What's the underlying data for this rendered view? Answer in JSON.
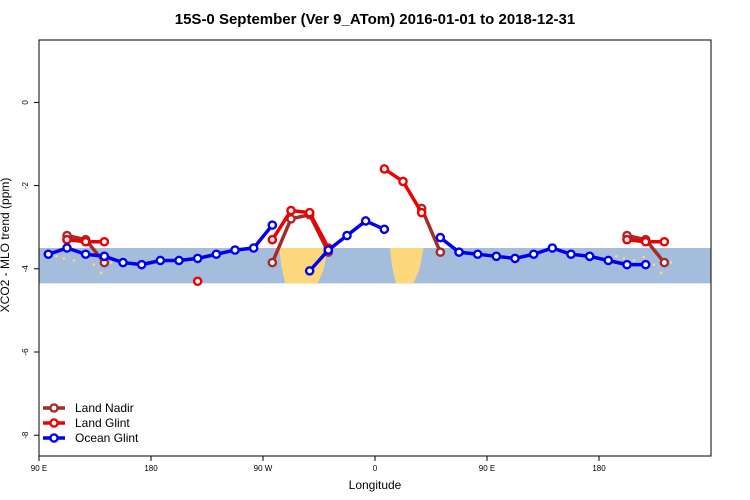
{
  "chart_data": {
    "type": "line",
    "title": "15S-0 September (Ver 9_ATom)   2016-01-01 to 2018-12-31",
    "xlabel": "Longitude",
    "ylabel": "XCO2 - MLO trend (ppm)",
    "xlim": [
      90,
      450
    ],
    "ylim": [
      -8.5,
      1.5
    ],
    "x_ticks": [
      {
        "value": 90,
        "label": "90 E"
      },
      {
        "value": 180,
        "label": "180"
      },
      {
        "value": 270,
        "label": "90 W"
      },
      {
        "value": 360,
        "label": "0"
      },
      {
        "value": 450,
        "label": "90 E"
      },
      {
        "value": 540,
        "label": "180"
      }
    ],
    "y_ticks": [
      {
        "value": 0,
        "label": "0"
      },
      {
        "value": -2,
        "label": "-2"
      },
      {
        "value": -4,
        "label": "-4"
      },
      {
        "value": -6,
        "label": "-6"
      },
      {
        "value": -8,
        "label": "-8"
      }
    ],
    "legend_position": "bottom-left",
    "grid": false,
    "series": [
      {
        "name": "Land Nadir",
        "color": "#a52a2a",
        "segments": [
          [
            {
              "x": 112.5,
              "y": -3.2
            },
            {
              "x": 127.5,
              "y": -3.3
            },
            {
              "x": 142.5,
              "y": -3.85
            }
          ],
          [
            {
              "x": 277.5,
              "y": -3.85
            },
            {
              "x": 292.5,
              "y": -2.8
            },
            {
              "x": 307.5,
              "y": -2.7
            },
            {
              "x": 322.5,
              "y": -3.6
            }
          ],
          [
            {
              "x": 397.5,
              "y": -2.55
            },
            {
              "x": 412.5,
              "y": -3.6
            }
          ],
          [
            {
              "x": 562.5,
              "y": -3.2
            },
            {
              "x": 577.5,
              "y": -3.3
            },
            {
              "x": 592.5,
              "y": -3.85
            }
          ]
        ]
      },
      {
        "name": "Land Glint",
        "color": "#ee0000",
        "segments": [
          [
            {
              "x": 112.5,
              "y": -3.3
            },
            {
              "x": 127.5,
              "y": -3.35
            },
            {
              "x": 142.5,
              "y": -3.35
            }
          ],
          [
            {
              "x": 217.5,
              "y": -4.3
            }
          ],
          [
            {
              "x": 277.5,
              "y": -3.3
            },
            {
              "x": 292.5,
              "y": -2.6
            },
            {
              "x": 307.5,
              "y": -2.65
            },
            {
              "x": 322.5,
              "y": -3.5
            }
          ],
          [
            {
              "x": 367.5,
              "y": -1.6
            },
            {
              "x": 382.5,
              "y": -1.9
            },
            {
              "x": 397.5,
              "y": -2.65
            }
          ],
          [
            {
              "x": 562.5,
              "y": -3.3
            },
            {
              "x": 577.5,
              "y": -3.35
            },
            {
              "x": 592.5,
              "y": -3.35
            }
          ]
        ]
      },
      {
        "name": "Ocean Glint",
        "color": "#0000ee",
        "segments": [
          [
            {
              "x": 97.5,
              "y": -3.65
            },
            {
              "x": 112.5,
              "y": -3.5
            },
            {
              "x": 127.5,
              "y": -3.65
            },
            {
              "x": 142.5,
              "y": -3.7
            },
            {
              "x": 157.5,
              "y": -3.85
            },
            {
              "x": 172.5,
              "y": -3.9
            },
            {
              "x": 187.5,
              "y": -3.8
            },
            {
              "x": 202.5,
              "y": -3.8
            },
            {
              "x": 217.5,
              "y": -3.75
            },
            {
              "x": 232.5,
              "y": -3.65
            },
            {
              "x": 247.5,
              "y": -3.55
            },
            {
              "x": 262.5,
              "y": -3.5
            },
            {
              "x": 277.5,
              "y": -2.95
            }
          ],
          [
            {
              "x": 307.5,
              "y": -4.05
            },
            {
              "x": 322.5,
              "y": -3.55
            },
            {
              "x": 337.5,
              "y": -3.2
            },
            {
              "x": 352.5,
              "y": -2.85
            },
            {
              "x": 367.5,
              "y": -3.05
            }
          ],
          [
            {
              "x": 412.5,
              "y": -3.25
            },
            {
              "x": 427.5,
              "y": -3.6
            },
            {
              "x": 442.5,
              "y": -3.65
            },
            {
              "x": 457.5,
              "y": -3.7
            },
            {
              "x": 472.5,
              "y": -3.75
            },
            {
              "x": 487.5,
              "y": -3.65
            },
            {
              "x": 502.5,
              "y": -3.5
            },
            {
              "x": 517.5,
              "y": -3.65
            },
            {
              "x": 532.5,
              "y": -3.7
            },
            {
              "x": 547.5,
              "y": -3.8
            },
            {
              "x": 562.5,
              "y": -3.9
            },
            {
              "x": 577.5,
              "y": -3.9
            }
          ]
        ]
      }
    ],
    "background_map": {
      "ocean_color": "#a5bddc",
      "land_color": "#fcd77b",
      "y_range": [
        -4.35,
        -3.5
      ]
    }
  }
}
